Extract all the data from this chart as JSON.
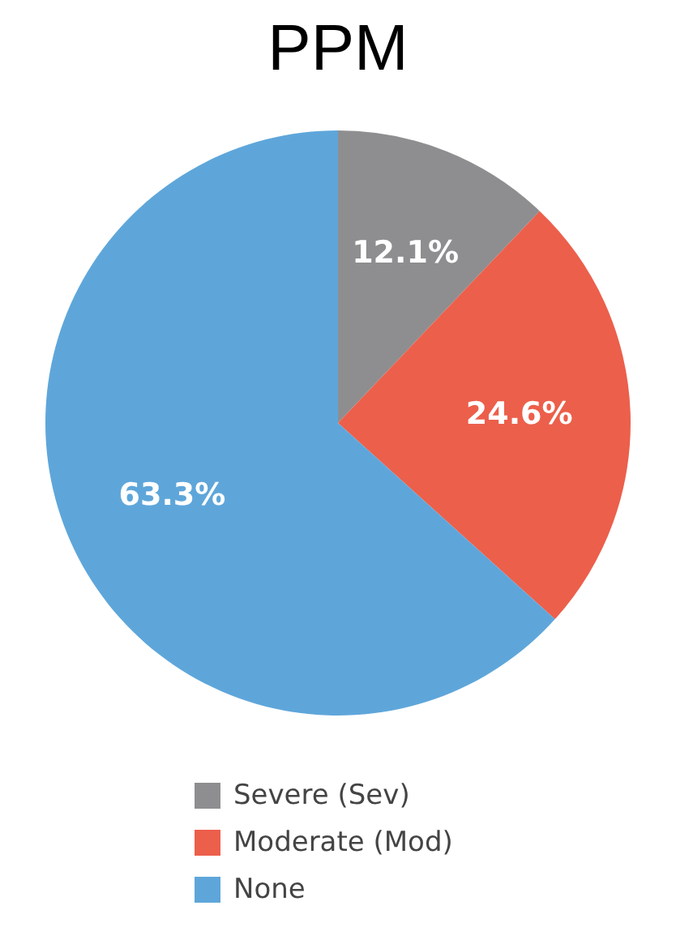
{
  "chart_data": {
    "type": "pie",
    "title": "PPM",
    "categories": [
      "Severe (Sev)",
      "Moderate (Mod)",
      "None"
    ],
    "values": [
      12.1,
      24.6,
      63.3
    ],
    "colors": [
      "#8e8e90",
      "#ec5f4b",
      "#5ea6da"
    ],
    "value_labels": [
      "12.1%",
      "24.6%",
      "63.3%"
    ],
    "legend": "bottom"
  }
}
